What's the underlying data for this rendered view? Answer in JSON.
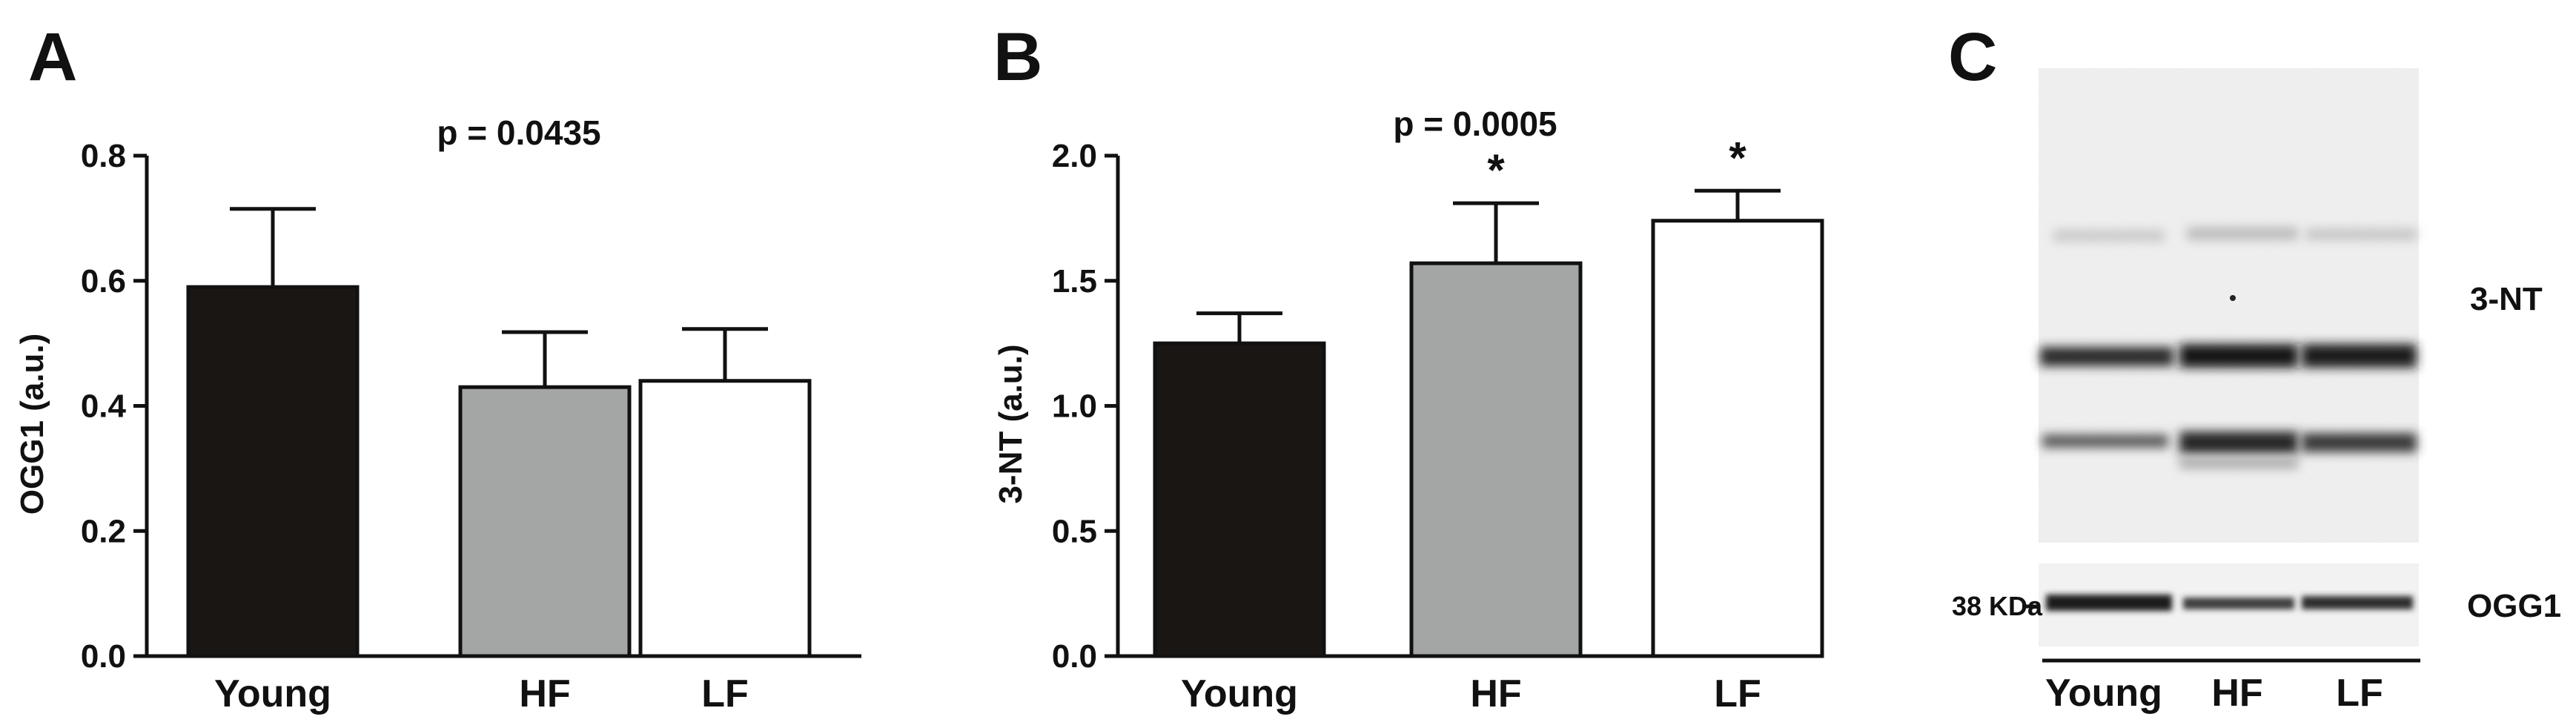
{
  "panels": {
    "a": {
      "letter": "A"
    },
    "b": {
      "letter": "B"
    },
    "c": {
      "letter": "C"
    }
  },
  "chart_data": [
    {
      "type": "bar",
      "panel": "A",
      "categories": [
        "Young",
        "HF",
        "LF"
      ],
      "values": [
        0.59,
        0.43,
        0.44
      ],
      "errors": [
        0.125,
        0.088,
        0.083
      ],
      "bar_colors": [
        "#1a1614",
        "#a3a6a4",
        "#ffffff"
      ],
      "ylabel": "OGG1 (a.u.)",
      "ylim": [
        0.0,
        0.8
      ],
      "yticks": [
        0.0,
        0.2,
        0.4,
        0.6,
        0.8
      ],
      "ytick_labels": [
        "0.0",
        "0.2",
        "0.4",
        "0.6",
        "0.8"
      ],
      "annotation": "p = 0.0435",
      "significance": [
        "",
        "",
        ""
      ]
    },
    {
      "type": "bar",
      "panel": "B",
      "categories": [
        "Young",
        "HF",
        "LF"
      ],
      "values": [
        1.25,
        1.57,
        1.74
      ],
      "errors": [
        0.12,
        0.24,
        0.12
      ],
      "bar_colors": [
        "#1a1614",
        "#a3a6a4",
        "#ffffff"
      ],
      "ylabel": "3-NT (a.u.)",
      "ylim": [
        0.0,
        2.0
      ],
      "yticks": [
        0.0,
        0.5,
        1.0,
        1.5,
        2.0
      ],
      "ytick_labels": [
        "0.0",
        "0.5",
        "1.0",
        "1.5",
        "2.0"
      ],
      "annotation": "p = 0.0005",
      "significance": [
        "",
        "*",
        "*"
      ]
    }
  ],
  "blot": {
    "band_labels": {
      "nt": "3-NT",
      "ogg1": "OGG1"
    },
    "marker_label": "38 KDa",
    "lanes": [
      "Young",
      "HF",
      "LF"
    ]
  }
}
